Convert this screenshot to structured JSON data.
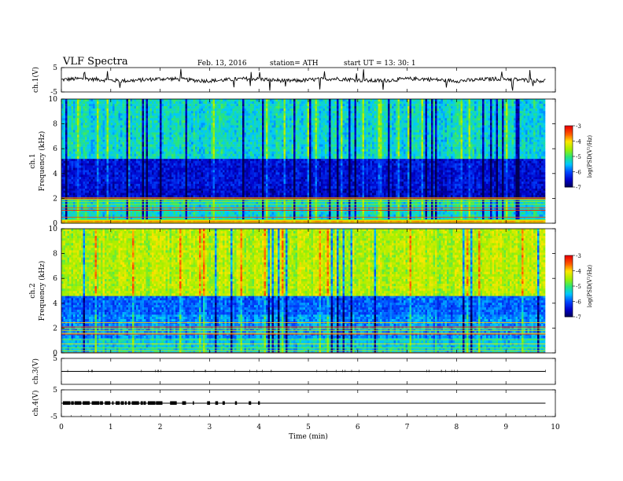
{
  "header": {
    "title": "VLF  Spectra",
    "date": "Feb. 13, 2016",
    "station": "station= ATH",
    "start": "start  UT  =   13: 30: 1"
  },
  "chart_data": [
    {
      "type": "line",
      "panel": "ch1-waveform",
      "ylabel": "ch.1(V)",
      "yticks": [
        "5",
        "-5"
      ],
      "ylim": [
        -5,
        5
      ],
      "baseline": 0,
      "x_range": [
        0,
        9.8
      ]
    },
    {
      "type": "heatmap",
      "panel": "ch1-spectrogram",
      "ylabel": "ch.1\nFrequency  (kHz)",
      "ylabel_lines": [
        "ch.1",
        "Frequency  (kHz)"
      ],
      "ylim": [
        0,
        10
      ],
      "yticks": [
        "0",
        "2",
        "4",
        "6",
        "8",
        "10"
      ],
      "x_range": [
        0,
        9.8
      ],
      "colorbar": {
        "label": "log(PSD(V²/Hz)",
        "ticks": [
          "-7",
          "-6",
          "-5",
          "-4",
          "-3"
        ],
        "range": [
          -7,
          -3
        ]
      },
      "bands": [
        {
          "f0": 0.0,
          "f1": 0.3,
          "level": -3.3
        },
        {
          "f0": 0.3,
          "f1": 1.9,
          "level": -5.3
        },
        {
          "f0": 1.9,
          "f1": 2.8,
          "level": -6.5
        },
        {
          "f0": 2.8,
          "f1": 5.2,
          "level": -6.4
        },
        {
          "f0": 5.2,
          "f1": 10.0,
          "level": -5.3
        }
      ]
    },
    {
      "type": "heatmap",
      "panel": "ch2-spectrogram",
      "ylabel": "ch.2\nFrequency  (kHz)",
      "ylabel_lines": [
        "ch.2",
        "Frequency  (kHz)"
      ],
      "ylim": [
        0,
        10
      ],
      "yticks": [
        "0",
        "2",
        "4",
        "6",
        "8",
        "10"
      ],
      "x_range": [
        0,
        9.8
      ],
      "colorbar": {
        "label": "log(PSD(V²/Hz)",
        "ticks": [
          "-7",
          "-6",
          "-5",
          "-4",
          "-3"
        ],
        "range": [
          -7,
          -3
        ]
      },
      "bands": [
        {
          "f0": 0.0,
          "f1": 1.2,
          "level": -5.4
        },
        {
          "f0": 1.2,
          "f1": 3.1,
          "level": -5.7
        },
        {
          "f0": 3.1,
          "f1": 4.6,
          "level": -5.9
        },
        {
          "f0": 4.6,
          "f1": 10.0,
          "level": -4.4
        }
      ]
    },
    {
      "type": "line",
      "panel": "ch3-waveform",
      "ylabel": "ch.3(V)",
      "yticks": [
        "5"
      ],
      "ylim": [
        -5,
        5
      ],
      "baseline": 0,
      "x_range": [
        0,
        9.8
      ]
    },
    {
      "type": "line",
      "panel": "ch4-waveform",
      "ylabel": "ch.4(V)",
      "yticks": [
        "5",
        "-5"
      ],
      "ylim": [
        -5,
        5
      ],
      "baseline": 0,
      "x_range": [
        0,
        9.8
      ],
      "bursts_until": 4.1
    }
  ],
  "xaxis": {
    "label": "Time  (min)",
    "ticks": [
      "0",
      "1",
      "2",
      "3",
      "4",
      "5",
      "6",
      "7",
      "8",
      "9",
      "10"
    ],
    "range": [
      0,
      10
    ]
  }
}
